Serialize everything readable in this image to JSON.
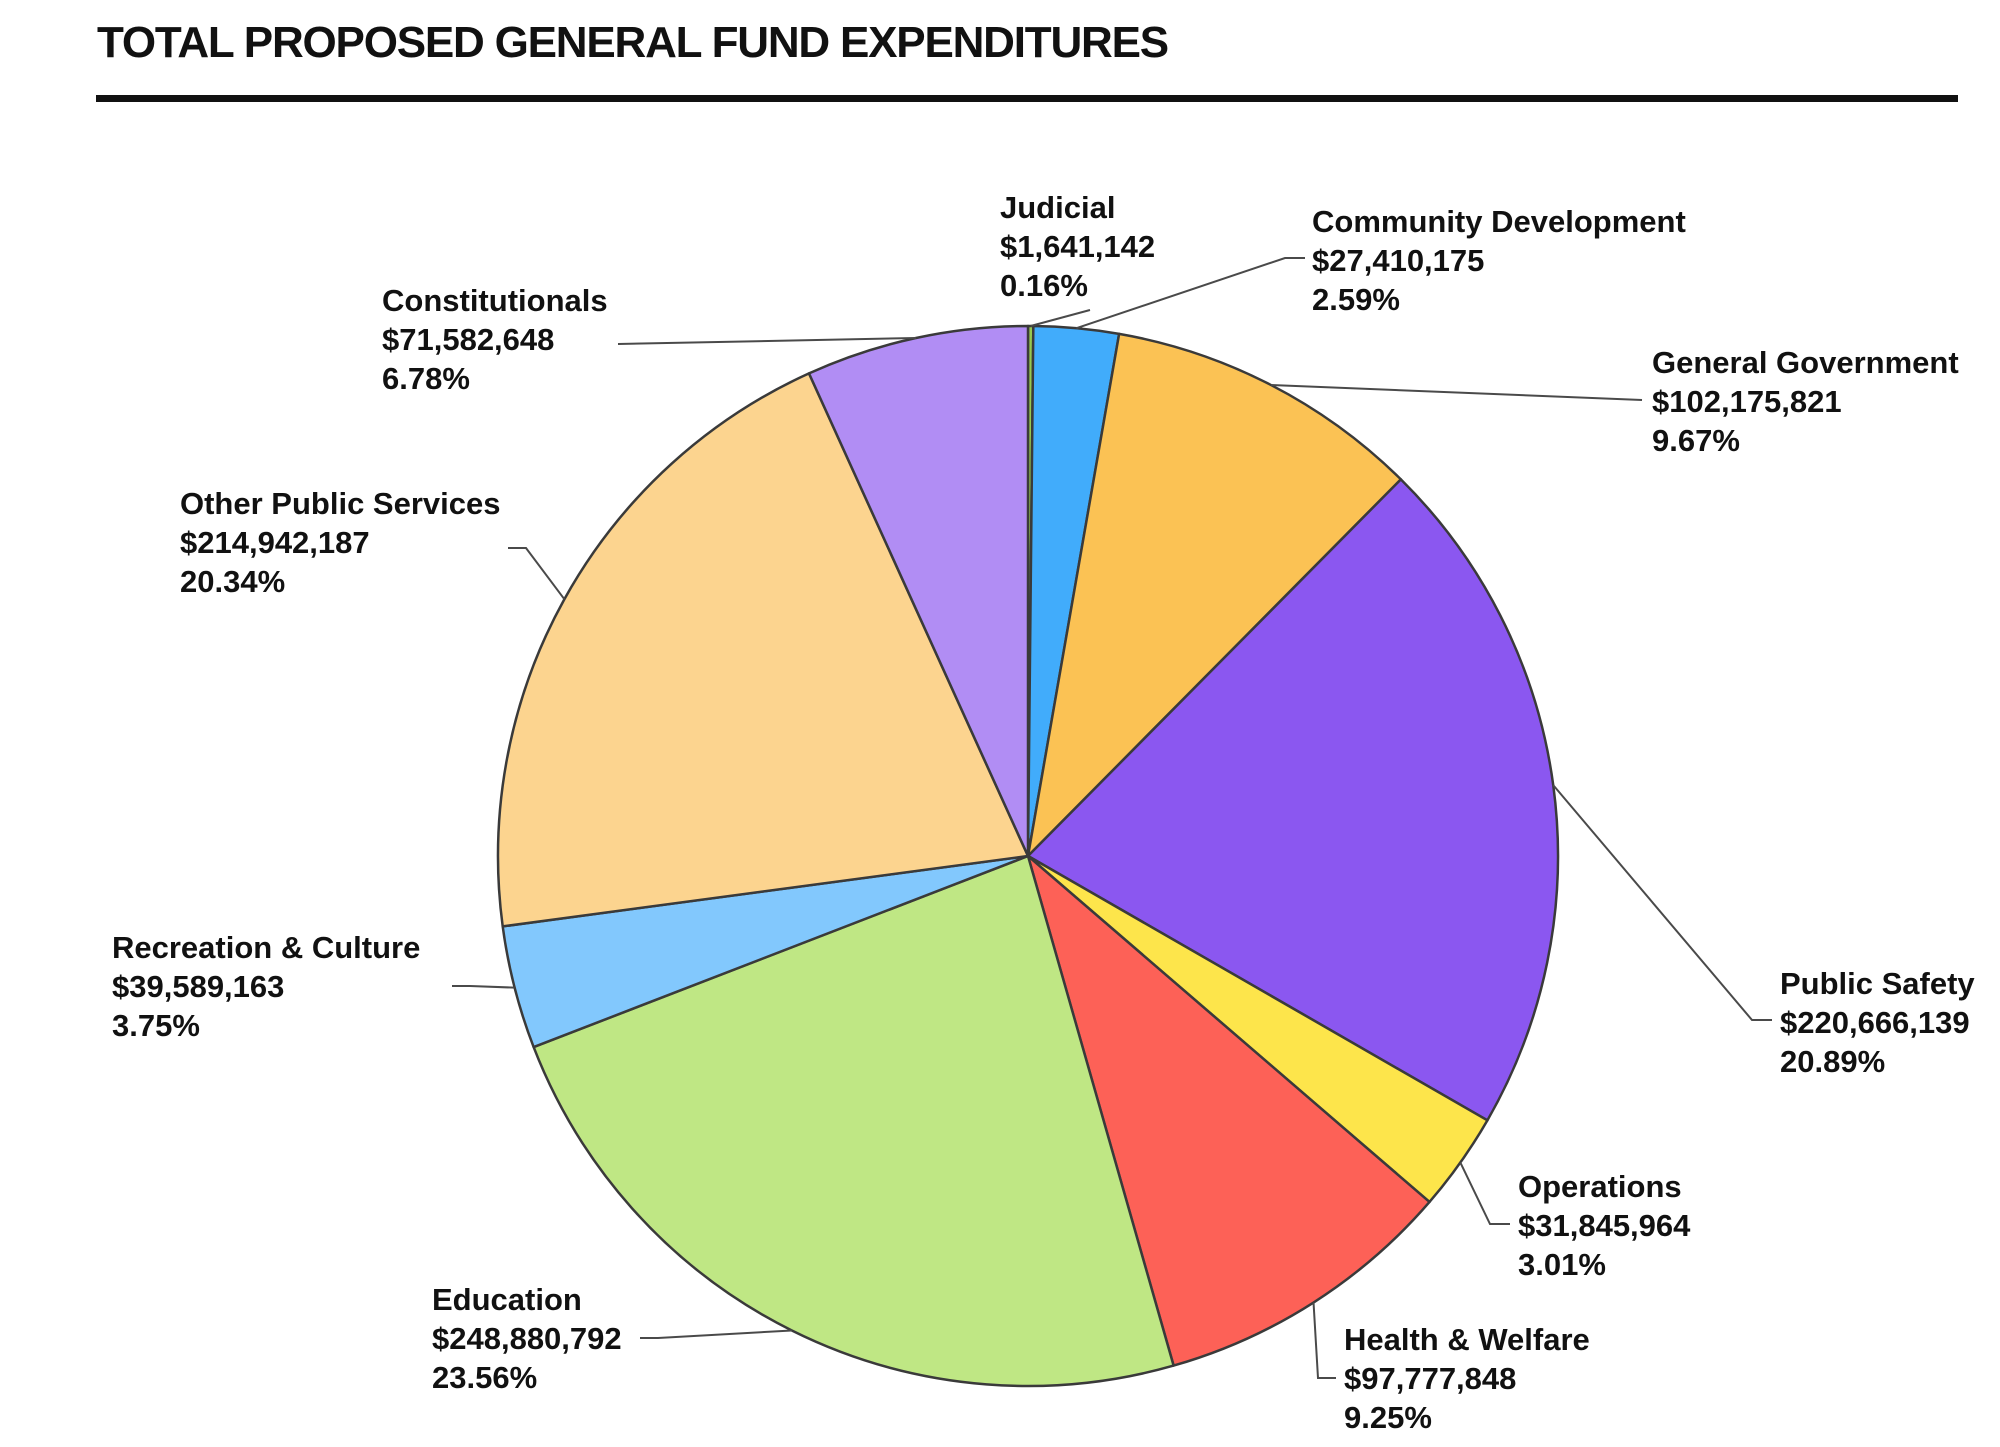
{
  "title": "TOTAL PROPOSED GENERAL FUND EXPENDITURES",
  "chart_data": {
    "type": "pie",
    "title": "TOTAL PROPOSED GENERAL FUND EXPENDITURES",
    "slices": [
      {
        "label": "Judicial",
        "amount": "$1,641,142",
        "percent_label": "0.16%",
        "value": 0.16,
        "color": "#97C94F"
      },
      {
        "label": "Community Development",
        "amount": "$27,410,175",
        "percent_label": "2.59%",
        "value": 2.59,
        "color": "#41ACFB"
      },
      {
        "label": "General Government",
        "amount": "$102,175,821",
        "percent_label": "9.67%",
        "value": 9.67,
        "color": "#FBC254"
      },
      {
        "label": "Public Safety",
        "amount": "$220,666,139",
        "percent_label": "20.89%",
        "value": 20.89,
        "color": "#8B57F0"
      },
      {
        "label": "Operations",
        "amount": "$31,845,964",
        "percent_label": "3.01%",
        "value": 3.01,
        "color": "#FDE54B"
      },
      {
        "label": "Health & Welfare",
        "amount": "$97,777,848",
        "percent_label": "9.25%",
        "value": 9.25,
        "color": "#FD6157"
      },
      {
        "label": "Education",
        "amount": "$248,880,792",
        "percent_label": "23.56%",
        "value": 23.56,
        "color": "#BFE784"
      },
      {
        "label": "Recreation & Culture",
        "amount": "$39,589,163",
        "percent_label": "3.75%",
        "value": 3.75,
        "color": "#82C8FD"
      },
      {
        "label": "Other Public Services",
        "amount": "$214,942,187",
        "percent_label": "20.34%",
        "value": 20.34,
        "color": "#FCD48F"
      },
      {
        "label": "Constitutionals",
        "amount": "$71,582,648",
        "percent_label": "6.78%",
        "value": 6.78,
        "color": "#B18DF4"
      }
    ]
  }
}
